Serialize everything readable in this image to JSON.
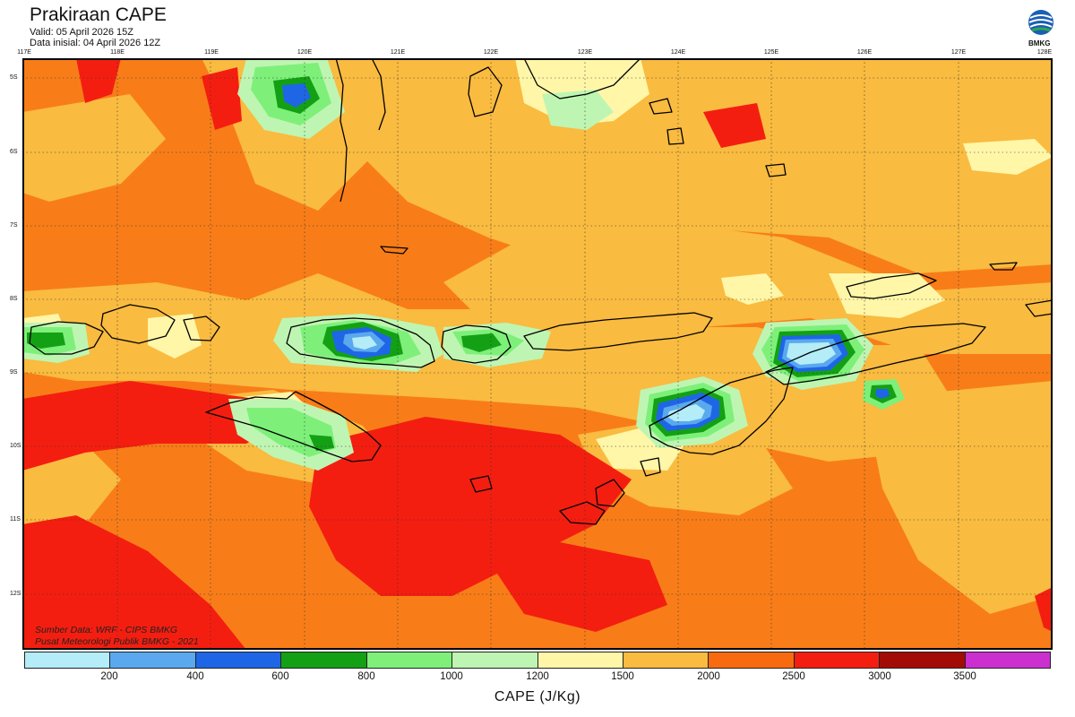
{
  "header": {
    "title": "Prakiraan CAPE",
    "valid": "Valid: 05 April 2026 15Z",
    "init": "Data inisial: 04 April 2026 12Z"
  },
  "logo": {
    "text": "BMKG",
    "icon": "bmkg-logo-icon"
  },
  "axes": {
    "lon_labels": [
      "117E",
      "118E",
      "119E",
      "120E",
      "121E",
      "122E",
      "123E",
      "124E",
      "125E",
      "126E",
      "127E",
      "128E"
    ],
    "lat_labels": [
      "5S",
      "6S",
      "7S",
      "8S",
      "9S",
      "10S",
      "11S",
      "12S"
    ]
  },
  "source": {
    "line1": "Sumber Data: WRF - CIPS BMKG",
    "line2": "Pusat Meteorologi Publik BMKG - 2021"
  },
  "colorbar": {
    "colors": [
      "#b4ecf7",
      "#5aa9ef",
      "#1f66e6",
      "#14a014",
      "#7ef07a",
      "#bff5b2",
      "#fff6a8",
      "#f9bb40",
      "#f86a10",
      "#f41e10",
      "#a30c06",
      "#cc2fd0"
    ],
    "labels": [
      "200",
      "400",
      "600",
      "800",
      "1000",
      "1200",
      "1500",
      "2000",
      "2500",
      "3000",
      "3500"
    ],
    "units": "CAPE (J/Kg)"
  },
  "map_colors": {
    "base": "#f87d18",
    "light_orange": "#f9bb40",
    "yellow": "#fff6a8",
    "red": "#f41e10",
    "lightgreen": "#bff5b2",
    "green": "#7ef07a",
    "darkgreen": "#14a014",
    "blue": "#1f66e6",
    "midblue": "#5aa9ef",
    "cyan": "#b4ecf7",
    "coast": "#000000"
  }
}
